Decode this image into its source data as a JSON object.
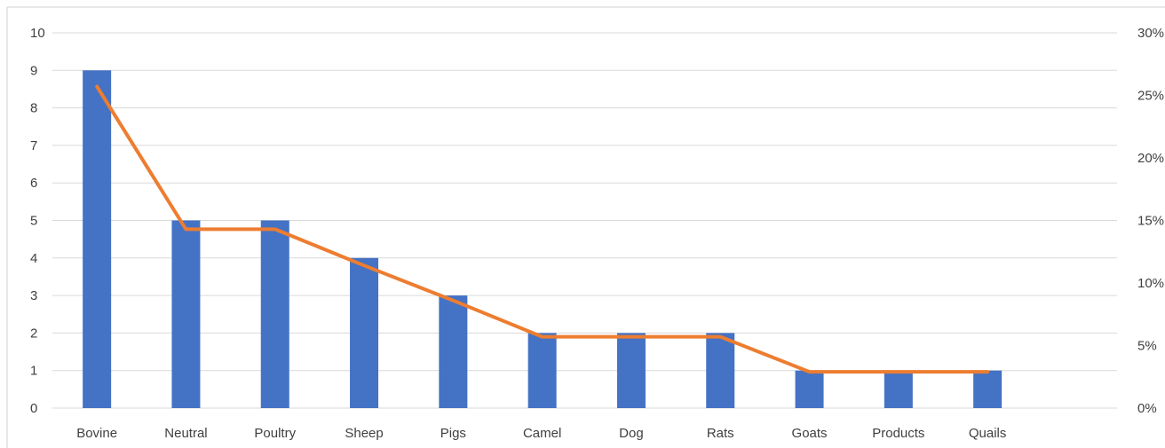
{
  "chart_data": {
    "type": "bar",
    "categories": [
      "Bovine",
      "Neutral",
      "Poultry",
      "Sheep",
      "Pigs",
      "Camel",
      "Dog",
      "Rats",
      "Goats",
      "Products",
      "Quails"
    ],
    "series": [
      {
        "type": "bar",
        "axis": "left",
        "values": [
          9,
          5,
          5,
          4,
          3,
          2,
          2,
          2,
          1,
          1,
          1
        ],
        "color": "#4472c4"
      },
      {
        "type": "line",
        "axis": "right",
        "values": [
          25.7,
          14.3,
          14.3,
          11.4,
          8.6,
          5.7,
          5.7,
          5.7,
          2.9,
          2.9,
          2.9
        ],
        "color": "#ed7d31"
      }
    ],
    "y_left": {
      "ylim": [
        0,
        10
      ],
      "ticks": [
        "0",
        "1",
        "2",
        "3",
        "4",
        "5",
        "6",
        "7",
        "8",
        "9",
        "10"
      ]
    },
    "y_right": {
      "ylim": [
        0,
        30
      ],
      "ticks": [
        "0%",
        "5%",
        "10%",
        "15%",
        "20%",
        "25%",
        "30%"
      ]
    },
    "grid": true,
    "legend": "none"
  }
}
